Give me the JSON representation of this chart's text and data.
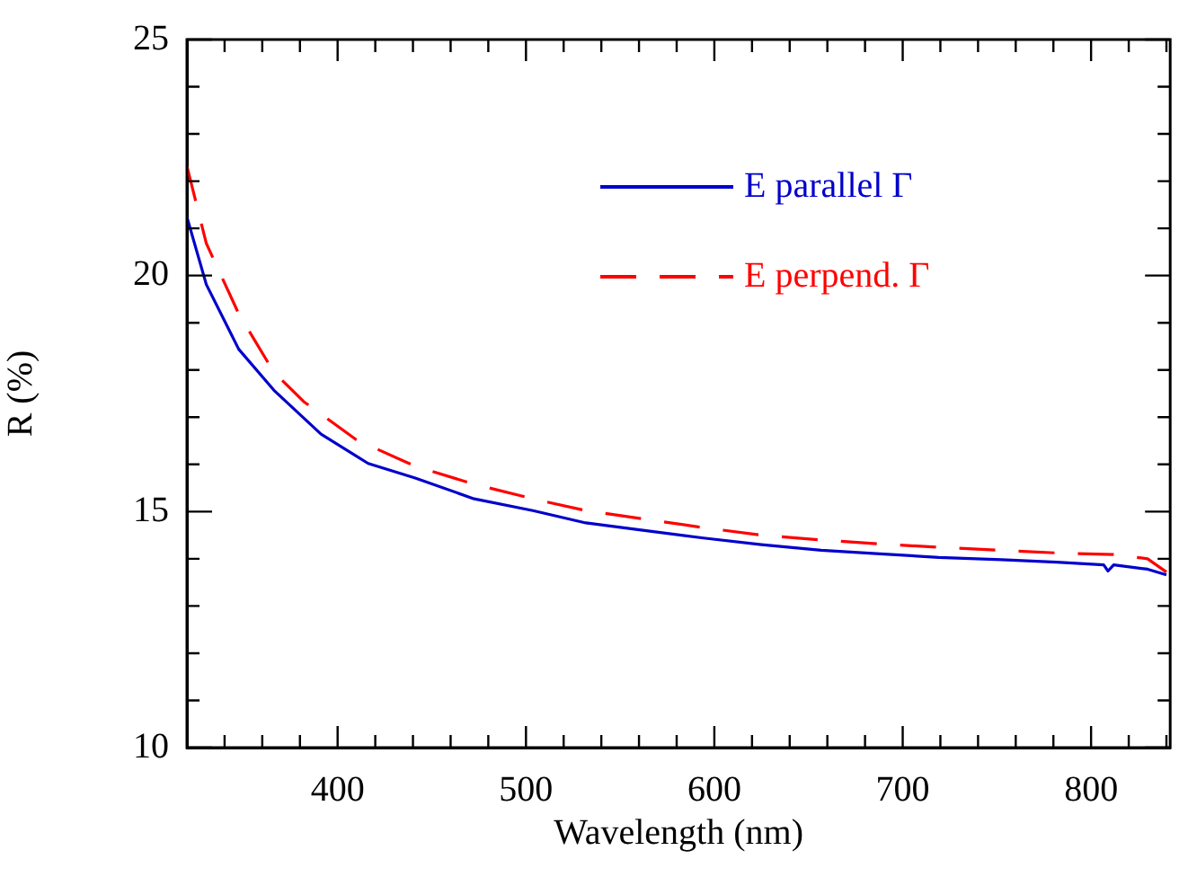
{
  "chart_data": {
    "type": "line",
    "xlabel": "Wavelength (nm)",
    "ylabel": "R (%)",
    "xlim": [
      320,
      842
    ],
    "ylim": [
      10,
      25
    ],
    "xticks": [
      {
        "value": 340,
        "label": null
      },
      {
        "value": 360,
        "label": null
      },
      {
        "value": 380,
        "label": null
      },
      400,
      {
        "value": 420,
        "label": null
      },
      {
        "value": 440,
        "label": null
      },
      {
        "value": 460,
        "label": null
      },
      {
        "value": 480,
        "label": null
      },
      500,
      {
        "value": 520,
        "label": null
      },
      {
        "value": 540,
        "label": null
      },
      {
        "value": 560,
        "label": null
      },
      {
        "value": 580,
        "label": null
      },
      600,
      {
        "value": 620,
        "label": null
      },
      {
        "value": 640,
        "label": null
      },
      {
        "value": 660,
        "label": null
      },
      {
        "value": 680,
        "label": null
      },
      700,
      {
        "value": 720,
        "label": null
      },
      {
        "value": 740,
        "label": null
      },
      {
        "value": 760,
        "label": null
      },
      {
        "value": 780,
        "label": null
      },
      800,
      {
        "value": 820,
        "label": null
      },
      {
        "value": 840,
        "label": null
      }
    ],
    "yticks": [
      10,
      {
        "value": 11,
        "label": null
      },
      {
        "value": 12,
        "label": null
      },
      {
        "value": 13,
        "label": null
      },
      {
        "value": 14,
        "label": null
      },
      15,
      {
        "value": 16,
        "label": null
      },
      {
        "value": 17,
        "label": null
      },
      {
        "value": 18,
        "label": null
      },
      {
        "value": 19,
        "label": null
      },
      20,
      {
        "value": 21,
        "label": null
      },
      {
        "value": 22,
        "label": null
      },
      {
        "value": 23,
        "label": null
      },
      {
        "value": 24,
        "label": null
      },
      25
    ],
    "grid": false,
    "legend": "top right",
    "series": [
      {
        "name": "E parallel Γ",
        "color": "#0000cc",
        "line_style": "solid",
        "x": [
          320,
          330.3,
          347.5,
          366.2,
          391.2,
          416.2,
          441.2,
          472.5,
          503.7,
          531.8,
          563,
          594.2,
          625,
          656.7,
          690,
          719.2,
          752.5,
          781.7,
          806.7,
          809,
          812,
          830,
          840
        ],
        "values": [
          21.24,
          19.81,
          18.44,
          17.57,
          16.64,
          16.02,
          15.71,
          15.27,
          15.02,
          14.76,
          14.6,
          14.44,
          14.3,
          14.18,
          14.1,
          14.03,
          13.98,
          13.93,
          13.87,
          13.74,
          13.87,
          13.78,
          13.66
        ]
      },
      {
        "name": "E perpend. Γ",
        "color": "#ff0000",
        "line_style": "dashed",
        "x": [
          320,
          330.3,
          347.5,
          366.2,
          382,
          410,
          441.2,
          472.5,
          503.7,
          531.8,
          563,
          594.2,
          625,
          656.7,
          690,
          721,
          752.5,
          783.7,
          812,
          830,
          840
        ],
        "values": [
          22.32,
          20.68,
          19.19,
          17.95,
          17.33,
          16.52,
          15.96,
          15.58,
          15.27,
          15.02,
          14.84,
          14.66,
          14.5,
          14.4,
          14.31,
          14.24,
          14.18,
          14.12,
          14.09,
          14.0,
          13.72
        ]
      }
    ]
  }
}
